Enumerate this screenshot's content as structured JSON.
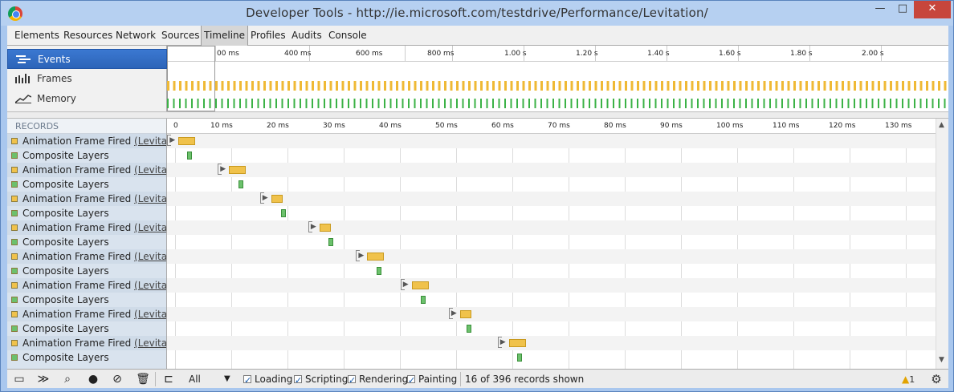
{
  "window": {
    "title": "Developer Tools - http://ie.microsoft.com/testdrive/Performance/Levitation/",
    "minimize": "—",
    "maximize": "□",
    "close": "✕"
  },
  "tabs": [
    "Elements",
    "Resources",
    "Network",
    "Sources",
    "Timeline",
    "Profiles",
    "Audits",
    "Console"
  ],
  "active_tab": "Timeline",
  "overview": {
    "modes": [
      "Events",
      "Frames",
      "Memory"
    ],
    "selected_mode": "Events",
    "ruler_labels": [
      "00 ms",
      "400 ms",
      "600 ms",
      "800 ms",
      "1.00 s",
      "1.20 s",
      "1.40 s",
      "1.60 s",
      "1.80 s",
      "2.00 s"
    ]
  },
  "records": {
    "header": "RECORDS",
    "time_labels": [
      "0",
      "10 ms",
      "20 ms",
      "30 ms",
      "40 ms",
      "50 ms",
      "60 ms",
      "70 ms",
      "80 ms",
      "90 ms",
      "100 ms",
      "110 ms",
      "120 ms",
      "130 ms"
    ],
    "rows": [
      {
        "name": "Animation Frame Fired",
        "link": "(Levitat...",
        "type": "script",
        "color": "#f0c24b",
        "start_ms": 0.6,
        "dur_ms": 1.5
      },
      {
        "name": "Composite Layers",
        "link": "",
        "type": "paint",
        "color": "#6cc16c",
        "start_ms": 2.2,
        "dur_ms": 0.4
      },
      {
        "name": "Animation Frame Fired",
        "link": "(Levitat...",
        "type": "script",
        "color": "#f0c24b",
        "start_ms": 9.6,
        "dur_ms": 1.5
      },
      {
        "name": "Composite Layers",
        "link": "",
        "type": "paint",
        "color": "#6cc16c",
        "start_ms": 11.3,
        "dur_ms": 0.4
      },
      {
        "name": "Animation Frame Fired",
        "link": "(Levitat...",
        "type": "script",
        "color": "#f0c24b",
        "start_ms": 17.1,
        "dur_ms": 1.0
      },
      {
        "name": "Composite Layers",
        "link": "",
        "type": "paint",
        "color": "#6cc16c",
        "start_ms": 18.9,
        "dur_ms": 0.4
      },
      {
        "name": "Animation Frame Fired",
        "link": "(Levitat...",
        "type": "script",
        "color": "#f0c24b",
        "start_ms": 25.7,
        "dur_ms": 1.0
      },
      {
        "name": "Composite Layers",
        "link": "",
        "type": "paint",
        "color": "#6cc16c",
        "start_ms": 27.3,
        "dur_ms": 0.4
      },
      {
        "name": "Animation Frame Fired",
        "link": "(Levitat...",
        "type": "script",
        "color": "#f0c24b",
        "start_ms": 34.2,
        "dur_ms": 1.5
      },
      {
        "name": "Composite Layers",
        "link": "",
        "type": "paint",
        "color": "#6cc16c",
        "start_ms": 35.8,
        "dur_ms": 0.4
      },
      {
        "name": "Animation Frame Fired",
        "link": "(Levitat...",
        "type": "script",
        "color": "#f0c24b",
        "start_ms": 42.1,
        "dur_ms": 1.5
      },
      {
        "name": "Composite Layers",
        "link": "",
        "type": "paint",
        "color": "#6cc16c",
        "start_ms": 43.7,
        "dur_ms": 0.4
      },
      {
        "name": "Animation Frame Fired",
        "link": "(Levitat...",
        "type": "script",
        "color": "#f0c24b",
        "start_ms": 50.7,
        "dur_ms": 1.0
      },
      {
        "name": "Composite Layers",
        "link": "",
        "type": "paint",
        "color": "#6cc16c",
        "start_ms": 51.9,
        "dur_ms": 0.4
      },
      {
        "name": "Animation Frame Fired",
        "link": "(Levitat...",
        "type": "script",
        "color": "#f0c24b",
        "start_ms": 59.4,
        "dur_ms": 1.5
      },
      {
        "name": "Composite Layers",
        "link": "",
        "type": "paint",
        "color": "#6cc16c",
        "start_ms": 60.8,
        "dur_ms": 0.4
      }
    ]
  },
  "statusbar": {
    "filter_value": "All",
    "filters": [
      "Loading",
      "Scripting",
      "Rendering",
      "Painting"
    ],
    "filter_colors": [
      "#5b8fd8",
      "#f0c24b",
      "#9a6bd1",
      "#4caf50"
    ],
    "records_shown": "16 of 396 records shown",
    "warning_count": "1"
  }
}
